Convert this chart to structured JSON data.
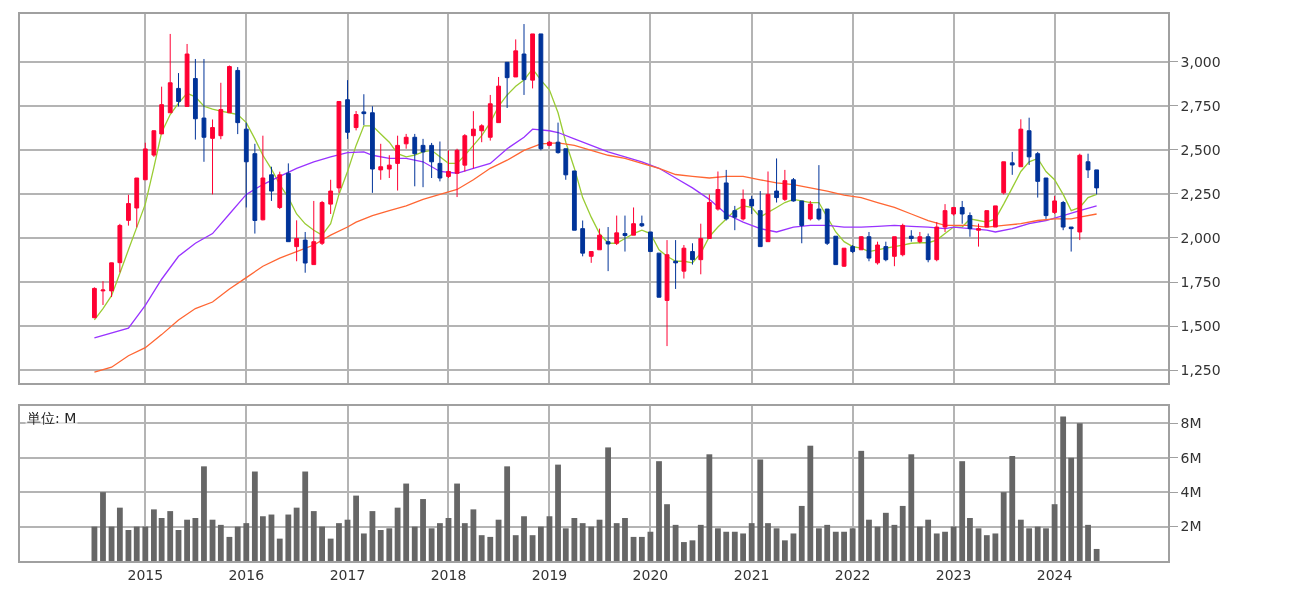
{
  "chart_data": [
    {
      "type": "candlestick",
      "x": [
        "2014-07",
        "2014-08",
        "2014-09",
        "2014-10",
        "2014-11",
        "2014-12",
        "2015-01",
        "2015-02",
        "2015-03",
        "2015-04",
        "2015-05",
        "2015-06",
        "2015-07",
        "2015-08",
        "2015-09",
        "2015-10",
        "2015-11",
        "2015-12",
        "2016-01",
        "2016-02",
        "2016-03",
        "2016-04",
        "2016-05",
        "2016-06",
        "2016-07",
        "2016-08",
        "2016-09",
        "2016-10",
        "2016-11",
        "2016-12",
        "2017-01",
        "2017-02",
        "2017-03",
        "2017-04",
        "2017-05",
        "2017-06",
        "2017-07",
        "2017-08",
        "2017-09",
        "2017-10",
        "2017-11",
        "2017-12",
        "2018-01",
        "2018-02",
        "2018-03",
        "2018-04",
        "2018-05",
        "2018-06",
        "2018-07",
        "2018-08",
        "2018-09",
        "2018-10",
        "2018-11",
        "2018-12",
        "2019-01",
        "2019-02",
        "2019-03",
        "2019-04",
        "2019-05",
        "2019-06",
        "2019-07",
        "2019-08",
        "2019-09",
        "2019-10",
        "2019-11",
        "2019-12",
        "2020-01",
        "2020-02",
        "2020-03",
        "2020-04",
        "2020-05",
        "2020-06",
        "2020-07",
        "2020-08",
        "2020-09",
        "2020-10",
        "2020-11",
        "2020-12",
        "2021-01",
        "2021-02",
        "2021-03",
        "2021-04",
        "2021-05",
        "2021-06",
        "2021-07",
        "2021-08",
        "2021-09",
        "2021-10",
        "2021-11",
        "2021-12",
        "2022-01",
        "2022-02",
        "2022-03",
        "2022-04",
        "2022-05",
        "2022-06",
        "2022-07",
        "2022-08",
        "2022-09",
        "2022-10",
        "2022-11",
        "2022-12",
        "2023-01",
        "2023-02",
        "2023-03",
        "2023-04",
        "2023-05",
        "2023-06",
        "2023-07",
        "2023-08",
        "2023-09",
        "2023-10",
        "2023-11",
        "2023-12",
        "2024-01",
        "2024-02",
        "2024-03",
        "2024-04",
        "2024-05",
        "2024-06"
      ],
      "series": [
        {
          "type": "candlestick",
          "colors": [
            "#ff0033",
            "#ff0033",
            "#ff0033",
            "#ff0033",
            "#ff0033",
            "#ff0033",
            "#ff0033",
            "#ff0033",
            "#ff0033",
            "#ff0033",
            "#003399",
            "#ff0033",
            "#003399",
            "#003399",
            "#ff0033",
            "#ff0033",
            "#ff0033",
            "#003399",
            "#003399",
            "#003399",
            "#ff0033",
            "#003399",
            "#ff0033",
            "#003399",
            "#ff0033",
            "#003399",
            "#ff0033",
            "#ff0033",
            "#ff0033",
            "#ff0033",
            "#003399",
            "#ff0033",
            "#003399",
            "#003399",
            "#ff0033",
            "#ff0033",
            "#ff0033",
            "#ff0033",
            "#003399",
            "#003399",
            "#003399",
            "#003399",
            "#ff0033",
            "#ff0033",
            "#ff0033",
            "#ff0033",
            "#ff0033",
            "#ff0033",
            "#ff0033",
            "#003399",
            "#ff0033",
            "#003399",
            "#ff0033",
            "#003399",
            "#ff0033",
            "#003399",
            "#003399",
            "#003399",
            "#003399",
            "#ff0033",
            "#ff0033",
            "#003399",
            "#ff0033",
            "#003399",
            "#ff0033",
            "#003399",
            "#003399",
            "#003399",
            "#ff0033",
            "#003399",
            "#ff0033",
            "#003399",
            "#ff0033",
            "#ff0033",
            "#ff0033",
            "#003399",
            "#003399",
            "#ff0033",
            "#003399",
            "#003399",
            "#ff0033",
            "#003399",
            "#ff0033",
            "#003399",
            "#003399",
            "#ff0033",
            "#003399",
            "#003399",
            "#003399",
            "#ff0033",
            "#003399",
            "#ff0033",
            "#003399",
            "#ff0033",
            "#003399",
            "#ff0033",
            "#ff0033",
            "#003399",
            "#ff0033",
            "#003399",
            "#ff0033",
            "#ff0033",
            "#ff0033",
            "#003399",
            "#003399",
            "#ff0033",
            "#ff0033",
            "#ff0033",
            "#ff0033",
            "#003399",
            "#ff0033",
            "#003399",
            "#003399",
            "#003399",
            "#ff0033",
            "#003399",
            "#003399",
            "#ff0033",
            "#003399",
            "#003399"
          ],
          "ohlc": [
            [
              1548,
              1720,
              1545,
              1714
            ],
            [
              1700,
              1755,
              1620,
              1705
            ],
            [
              1700,
              1860,
              1665,
              1859
            ],
            [
              1860,
              2080,
              1805,
              2071
            ],
            [
              2100,
              2245,
              2070,
              2195
            ],
            [
              2170,
              2340,
              2060,
              2340
            ],
            [
              2330,
              2540,
              2330,
              2505
            ],
            [
              2470,
              2610,
              2460,
              2608
            ],
            [
              2590,
              2858,
              2590,
              2756
            ],
            [
              2710,
              3157,
              2710,
              2880
            ],
            [
              2848,
              2935,
              2746,
              2774
            ],
            [
              2746,
              3100,
              2746,
              3043
            ],
            [
              2904,
              3015,
              2558,
              2676
            ],
            [
              2680,
              3015,
              2432,
              2571
            ],
            [
              2565,
              2672,
              2247,
              2626
            ],
            [
              2580,
              2880,
              2560,
              2728
            ],
            [
              2710,
              2978,
              2710,
              2972
            ],
            [
              2950,
              2969,
              2589,
              2654
            ],
            [
              2617,
              2654,
              2173,
              2432
            ],
            [
              2478,
              2534,
              2025,
              2099
            ],
            [
              2103,
              2580,
              2100,
              2340
            ],
            [
              2358,
              2404,
              2210,
              2266
            ],
            [
              2173,
              2376,
              2164,
              2358
            ],
            [
              2367,
              2423,
              1979,
              1979
            ],
            [
              1951,
              2100,
              1868,
              1997
            ],
            [
              1988,
              2034,
              1803,
              1858
            ],
            [
              1849,
              2210,
              1849,
              1979
            ],
            [
              1970,
              2210,
              1960,
              2201
            ],
            [
              2192,
              2330,
              2136,
              2266
            ],
            [
              2284,
              2774,
              2256,
              2774
            ],
            [
              2784,
              2895,
              2562,
              2599
            ],
            [
              2626,
              2720,
              2610,
              2700
            ],
            [
              2715,
              2815,
              2640,
              2705
            ],
            [
              2710,
              2747,
              2256,
              2391
            ],
            [
              2386,
              2534,
              2330,
              2404
            ],
            [
              2391,
              2469,
              2340,
              2413
            ],
            [
              2423,
              2580,
              2269,
              2525
            ],
            [
              2534,
              2590,
              2506,
              2571
            ],
            [
              2571,
              2590,
              2293,
              2478
            ],
            [
              2525,
              2562,
              2288,
              2488
            ],
            [
              2525,
              2539,
              2340,
              2432
            ],
            [
              2423,
              2547,
              2321,
              2340
            ],
            [
              2349,
              2497,
              2340,
              2377
            ],
            [
              2367,
              2506,
              2232,
              2497
            ],
            [
              2413,
              2589,
              2377,
              2580
            ],
            [
              2580,
              2719,
              2395,
              2617
            ],
            [
              2608,
              2645,
              2543,
              2636
            ],
            [
              2571,
              2811,
              2552,
              2761
            ],
            [
              2654,
              2913,
              2654,
              2861
            ],
            [
              2996,
              2996,
              2737,
              2909
            ],
            [
              2913,
              3126,
              2913,
              3061
            ],
            [
              3043,
              3213,
              2811,
              2898
            ],
            [
              2895,
              3157,
              2848,
              3157
            ],
            [
              3157,
              3157,
              2497,
              2506
            ],
            [
              2525,
              2550,
              2520,
              2543
            ],
            [
              2543,
              2654,
              2478,
              2484
            ],
            [
              2506,
              2506,
              2330,
              2358
            ],
            [
              2380,
              2380,
              2044,
              2044
            ],
            [
              2053,
              2099,
              1896,
              1914
            ],
            [
              1896,
              1923,
              1859,
              1923
            ],
            [
              1933,
              2053,
              1933,
              2016
            ],
            [
              1979,
              2062,
              1812,
              1966
            ],
            [
              1970,
              2127,
              1960,
              2029
            ],
            [
              2025,
              2127,
              1923,
              2014
            ],
            [
              2016,
              2173,
              2016,
              2081
            ],
            [
              2081,
              2127,
              2062,
              2069
            ],
            [
              2034,
              2034,
              1923,
              1923
            ],
            [
              1914,
              1914,
              1664,
              1664
            ],
            [
              1646,
              1988,
              1387,
              1905
            ],
            [
              1868,
              1988,
              1711,
              1859
            ],
            [
              1812,
              1960,
              1770,
              1942
            ],
            [
              1923,
              1970,
              1849,
              1877
            ],
            [
              1877,
              2081,
              1794,
              1997
            ],
            [
              1997,
              2247,
              1997,
              2201
            ],
            [
              2164,
              2377,
              2155,
              2275
            ],
            [
              2312,
              2386,
              2099,
              2108
            ],
            [
              2155,
              2182,
              2044,
              2118
            ],
            [
              2108,
              2275,
              2099,
              2219
            ],
            [
              2219,
              2238,
              2136,
              2182
            ],
            [
              2155,
              2266,
              1951,
              1951
            ],
            [
              1979,
              2377,
              1979,
              2247
            ],
            [
              2266,
              2451,
              2201,
              2229
            ],
            [
              2219,
              2386,
              2210,
              2325
            ],
            [
              2330,
              2340,
              2206,
              2210
            ],
            [
              2210,
              2210,
              1970,
              2071
            ],
            [
              2108,
              2210,
              2099,
              2192
            ],
            [
              2164,
              2413,
              2099,
              2108
            ],
            [
              2164,
              2164,
              1960,
              1970
            ],
            [
              2010,
              2010,
              1849,
              1849
            ],
            [
              1840,
              1942,
              1836,
              1942
            ],
            [
              1951,
              1960,
              1914,
              1923
            ],
            [
              1933,
              2010,
              1933,
              2007
            ],
            [
              2007,
              2034,
              1868,
              1886
            ],
            [
              1859,
              1979,
              1849,
              1960
            ],
            [
              1951,
              1979,
              1868,
              1877
            ],
            [
              1896,
              2007,
              1840,
              2007
            ],
            [
              1905,
              2081,
              1896,
              2071
            ],
            [
              2010,
              2044,
              1979,
              1997
            ],
            [
              1979,
              2034,
              1970,
              2007
            ],
            [
              2007,
              2025,
              1862,
              1877
            ],
            [
              1877,
              2090,
              1868,
              2062
            ],
            [
              2062,
              2192,
              2034,
              2155
            ],
            [
              2136,
              2173,
              2127,
              2173
            ],
            [
              2173,
              2210,
              2081,
              2136
            ],
            [
              2127,
              2145,
              2007,
              2053
            ],
            [
              2044,
              2081,
              1951,
              2053
            ],
            [
              2062,
              2155,
              2062,
              2155
            ],
            [
              2062,
              2182,
              2062,
              2182
            ],
            [
              2256,
              2432,
              2247,
              2432
            ],
            [
              2426,
              2488,
              2358,
              2414
            ],
            [
              2404,
              2673,
              2404,
              2617
            ],
            [
              2608,
              2682,
              2414,
              2460
            ],
            [
              2478,
              2488,
              2229,
              2321
            ],
            [
              2340,
              2340,
              2108,
              2127
            ],
            [
              2145,
              2238,
              2136,
              2210
            ],
            [
              2201,
              2210,
              2044,
              2062
            ],
            [
              2062,
              2062,
              1923,
              2053
            ],
            [
              2034,
              2478,
              1988,
              2469
            ],
            [
              2432,
              2478,
              2340,
              2386
            ],
            [
              2386,
              2386,
              2247,
              2284
            ]
          ]
        },
        {
          "type": "line",
          "color": "#99cc33",
          "values": [
            1535,
            1600,
            1673,
            1800,
            1933,
            2060,
            2192,
            2400,
            2598,
            2700,
            2765,
            2820,
            2800,
            2747,
            2730,
            2719,
            2710,
            2700,
            2654,
            2562,
            2469,
            2390,
            2303,
            2229,
            2136,
            2080,
            2044,
            2016,
            2081,
            2247,
            2377,
            2525,
            2636,
            2636,
            2590,
            2543,
            2478,
            2460,
            2470,
            2488,
            2497,
            2460,
            2423,
            2423,
            2469,
            2525,
            2580,
            2654,
            2747,
            2811,
            2860,
            2895,
            2959,
            2895,
            2839,
            2710,
            2543,
            2395,
            2229,
            2118,
            2025,
            1970,
            1970,
            1997,
            2025,
            2044,
            2025,
            1933,
            1896,
            1868,
            1868,
            1859,
            1914,
            2007,
            2062,
            2108,
            2155,
            2182,
            2173,
            2118,
            2145,
            2173,
            2201,
            2219,
            2210,
            2201,
            2201,
            2118,
            2034,
            1979,
            1951,
            1942,
            1923,
            1933,
            1942,
            1951,
            1960,
            1970,
            1973,
            1973,
            1988,
            2025,
            2062,
            2062,
            2108,
            2099,
            2090,
            2108,
            2192,
            2284,
            2377,
            2432,
            2451,
            2377,
            2330,
            2247,
            2155,
            2173,
            2229,
            2247
          ]
        },
        {
          "type": "line",
          "color": "#9933ff",
          "x": [
            "2014-07",
            "2014-11",
            "2015-01",
            "2015-03",
            "2015-05",
            "2015-07",
            "2015-09",
            "2015-11",
            "2016-01",
            "2016-03",
            "2016-05",
            "2016-07",
            "2016-09",
            "2016-11",
            "2017-01",
            "2017-03",
            "2017-04",
            "2017-06",
            "2017-08",
            "2017-10",
            "2017-12",
            "2018-02",
            "2018-04",
            "2018-06",
            "2018-08",
            "2018-10",
            "2018-11",
            "2019-01",
            "2019-02",
            "2019-04",
            "2019-06",
            "2019-08",
            "2019-10",
            "2019-12",
            "2020-02",
            "2020-04",
            "2020-06",
            "2020-08",
            "2020-10",
            "2020-12",
            "2021-02",
            "2021-04",
            "2021-06",
            "2021-08",
            "2021-10",
            "2021-12",
            "2022-02",
            "2022-04",
            "2022-06",
            "2022-08",
            "2022-10",
            "2022-12",
            "2023-01",
            "2023-03",
            "2023-05",
            "2023-06",
            "2023-08",
            "2023-10",
            "2023-12",
            "2024-02",
            "2024-04",
            "2024-06"
          ],
          "values": [
            1433,
            1489,
            1618,
            1766,
            1896,
            1970,
            2025,
            2136,
            2247,
            2303,
            2349,
            2395,
            2432,
            2460,
            2484,
            2488,
            2469,
            2451,
            2451,
            2432,
            2377,
            2367,
            2395,
            2423,
            2506,
            2571,
            2617,
            2608,
            2598,
            2562,
            2525,
            2488,
            2460,
            2432,
            2395,
            2340,
            2284,
            2219,
            2136,
            2090,
            2053,
            2034,
            2062,
            2071,
            2071,
            2062,
            2062,
            2066,
            2071,
            2066,
            2062,
            2053,
            2062,
            2053,
            2044,
            2034,
            2053,
            2081,
            2099,
            2127,
            2155,
            2182
          ]
        },
        {
          "type": "line",
          "color": "#ff6633",
          "x": [
            "2014-07",
            "2014-09",
            "2014-11",
            "2015-01",
            "2015-03",
            "2015-05",
            "2015-07",
            "2015-09",
            "2015-11",
            "2016-01",
            "2016-03",
            "2016-05",
            "2016-07",
            "2016-09",
            "2016-11",
            "2017-01",
            "2017-02",
            "2017-04",
            "2017-06",
            "2017-08",
            "2017-10",
            "2017-12",
            "2018-02",
            "2018-04",
            "2018-06",
            "2018-08",
            "2018-10",
            "2018-12",
            "2019-02",
            "2019-04",
            "2019-06",
            "2019-08",
            "2019-10",
            "2019-12",
            "2020-02",
            "2020-04",
            "2020-06",
            "2020-08",
            "2020-10",
            "2020-12",
            "2021-02",
            "2021-04",
            "2021-06",
            "2021-08",
            "2021-10",
            "2021-12",
            "2022-02",
            "2022-04",
            "2022-06",
            "2022-08",
            "2022-10",
            "2022-12",
            "2023-01",
            "2023-03",
            "2023-05",
            "2023-07",
            "2023-09",
            "2023-11",
            "2024-01",
            "2024-03",
            "2024-04",
            "2024-06"
          ],
          "values": [
            1239,
            1267,
            1332,
            1378,
            1452,
            1535,
            1600,
            1637,
            1711,
            1775,
            1840,
            1886,
            1923,
            1960,
            2016,
            2062,
            2090,
            2127,
            2155,
            2182,
            2219,
            2247,
            2275,
            2330,
            2395,
            2441,
            2497,
            2534,
            2539,
            2525,
            2497,
            2469,
            2451,
            2423,
            2395,
            2360,
            2349,
            2340,
            2349,
            2349,
            2330,
            2312,
            2303,
            2284,
            2266,
            2243,
            2229,
            2201,
            2173,
            2136,
            2099,
            2071,
            2071,
            2071,
            2062,
            2071,
            2081,
            2099,
            2108,
            2108,
            2118,
            2136
          ]
        }
      ],
      "xlim": [
        "2013-10-05",
        "2025-02-14"
      ],
      "xticks": [
        "2015",
        "2016",
        "2017",
        "2018",
        "2019",
        "2020",
        "2021",
        "2022",
        "2023",
        "2024"
      ],
      "ylim": [
        1180,
        3270
      ],
      "yticks": [
        {
          "value": 1250,
          "label": "1,250"
        },
        {
          "value": 1500,
          "label": "1,500"
        },
        {
          "value": 1750,
          "label": "1,750"
        },
        {
          "value": 2000,
          "label": "2,000"
        },
        {
          "value": 2250,
          "label": "2,250"
        },
        {
          "value": 2500,
          "label": "2,500"
        },
        {
          "value": 2750,
          "label": "2,750"
        },
        {
          "value": 3000,
          "label": "3,000"
        }
      ],
      "grid": true,
      "tick_labels": "y"
    },
    {
      "type": "bar",
      "color": "#666666",
      "x": [
        "2014-07",
        "2014-08",
        "2014-09",
        "2014-10",
        "2014-11",
        "2014-12",
        "2015-01",
        "2015-02",
        "2015-03",
        "2015-04",
        "2015-05",
        "2015-06",
        "2015-07",
        "2015-08",
        "2015-09",
        "2015-10",
        "2015-11",
        "2015-12",
        "2016-01",
        "2016-02",
        "2016-03",
        "2016-04",
        "2016-05",
        "2016-06",
        "2016-07",
        "2016-08",
        "2016-09",
        "2016-10",
        "2016-11",
        "2016-12",
        "2017-01",
        "2017-02",
        "2017-03",
        "2017-04",
        "2017-05",
        "2017-06",
        "2017-07",
        "2017-08",
        "2017-09",
        "2017-10",
        "2017-11",
        "2017-12",
        "2018-01",
        "2018-02",
        "2018-03",
        "2018-04",
        "2018-05",
        "2018-06",
        "2018-07",
        "2018-08",
        "2018-09",
        "2018-10",
        "2018-11",
        "2018-12",
        "2019-01",
        "2019-02",
        "2019-03",
        "2019-04",
        "2019-05",
        "2019-06",
        "2019-07",
        "2019-08",
        "2019-09",
        "2019-10",
        "2019-11",
        "2019-12",
        "2020-01",
        "2020-02",
        "2020-03",
        "2020-04",
        "2020-05",
        "2020-06",
        "2020-07",
        "2020-08",
        "2020-09",
        "2020-10",
        "2020-11",
        "2020-12",
        "2021-01",
        "2021-02",
        "2021-03",
        "2021-04",
        "2021-05",
        "2021-06",
        "2021-07",
        "2021-08",
        "2021-09",
        "2021-10",
        "2021-11",
        "2021-12",
        "2022-01",
        "2022-02",
        "2022-03",
        "2022-04",
        "2022-05",
        "2022-06",
        "2022-07",
        "2022-08",
        "2022-09",
        "2022-10",
        "2022-11",
        "2022-12",
        "2023-01",
        "2023-02",
        "2023-03",
        "2023-04",
        "2023-05",
        "2023-06",
        "2023-07",
        "2023-08",
        "2023-09",
        "2023-10",
        "2023-11",
        "2023-12",
        "2024-01",
        "2024-02",
        "2024-03",
        "2024-04",
        "2024-05",
        "2024-06"
      ],
      "values": [
        2.0,
        4.0,
        2.0,
        3.1,
        1.8,
        2.0,
        2.0,
        3.0,
        2.5,
        2.9,
        1.8,
        2.4,
        2.5,
        5.5,
        2.4,
        2.1,
        1.4,
        2.0,
        2.2,
        5.2,
        2.6,
        2.7,
        1.3,
        2.7,
        3.1,
        5.2,
        2.9,
        2.0,
        1.3,
        2.2,
        2.4,
        3.8,
        1.6,
        2.9,
        1.8,
        1.9,
        3.1,
        4.5,
        2.0,
        3.6,
        1.9,
        2.2,
        2.5,
        4.5,
        2.2,
        3.0,
        1.5,
        1.4,
        2.4,
        5.5,
        1.5,
        2.6,
        1.5,
        2.0,
        2.6,
        5.6,
        1.9,
        2.5,
        2.2,
        2.0,
        2.4,
        6.6,
        2.2,
        2.5,
        1.4,
        1.4,
        1.7,
        5.8,
        3.3,
        2.1,
        1.1,
        1.2,
        2.1,
        6.2,
        1.9,
        1.7,
        1.7,
        1.6,
        2.2,
        5.9,
        2.2,
        1.9,
        1.2,
        1.6,
        3.2,
        6.7,
        1.9,
        2.1,
        1.7,
        1.7,
        1.9,
        6.4,
        2.4,
        2.0,
        2.8,
        2.1,
        3.2,
        6.2,
        2.0,
        2.4,
        1.6,
        1.7,
        2.0,
        5.8,
        2.5,
        1.9,
        1.5,
        1.6,
        4.0,
        6.1,
        2.4,
        1.9,
        2.0,
        1.9,
        3.3,
        8.4,
        6.0,
        8.0,
        2.1,
        0.7
      ],
      "xlim": [
        "2013-10-05",
        "2025-02-14"
      ],
      "xticks": [
        "2015",
        "2016",
        "2017",
        "2018",
        "2019",
        "2020",
        "2021",
        "2022",
        "2023",
        "2024"
      ],
      "ylim": [
        0,
        9.0
      ],
      "yticks": [
        {
          "value": 2,
          "label": "2M"
        },
        {
          "value": 4,
          "label": "4M"
        },
        {
          "value": 6,
          "label": "6M"
        },
        {
          "value": 8,
          "label": "8M"
        }
      ],
      "annotations": [
        "単位: M"
      ],
      "grid": true
    }
  ]
}
